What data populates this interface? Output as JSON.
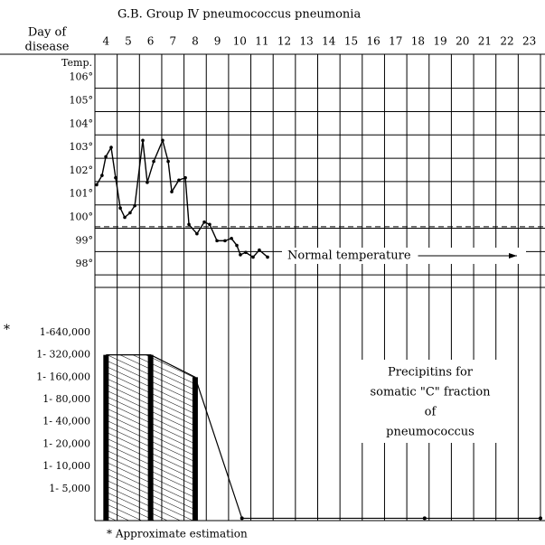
{
  "title": "G.B.   Group Ⅳ pneumococcus pneumonia",
  "x_label": [
    "Day of",
    "disease"
  ],
  "chart_data": [
    {
      "type": "line",
      "y_label": "Temp.",
      "xlim": [
        3.5,
        23.5
      ],
      "xticks": [
        4,
        5,
        6,
        7,
        8,
        9,
        10,
        11,
        12,
        13,
        14,
        15,
        16,
        17,
        18,
        19,
        20,
        21,
        22,
        23
      ],
      "ylim": [
        97,
        106.8
      ],
      "yticks": [
        {
          "value": 98,
          "label": "98°"
        },
        {
          "value": 99,
          "label": "99°"
        },
        {
          "value": 100,
          "label": "100°"
        },
        {
          "value": 101,
          "label": "101°"
        },
        {
          "value": 102,
          "label": "102°"
        },
        {
          "value": 103,
          "label": "103°"
        },
        {
          "value": 104,
          "label": "104°"
        },
        {
          "value": 105,
          "label": "105°"
        },
        {
          "value": 106,
          "label": "106°"
        }
      ],
      "grid": true,
      "reference": {
        "value": 99.6,
        "label": "Normal temperature"
      },
      "x": [
        3.58,
        3.82,
        3.99,
        4.23,
        4.43,
        4.64,
        4.84,
        5.08,
        5.29,
        5.65,
        5.85,
        6.14,
        6.54,
        6.79,
        6.95,
        7.27,
        7.56,
        7.72,
        8.08,
        8.41,
        8.65,
        8.98,
        9.34,
        9.63,
        9.87,
        10.03,
        10.27,
        10.6,
        10.88,
        11.25
      ],
      "values": [
        101.4,
        101.8,
        102.6,
        103.0,
        101.7,
        100.4,
        100.0,
        100.2,
        100.5,
        103.3,
        101.5,
        102.4,
        103.3,
        102.4,
        101.1,
        101.6,
        101.7,
        99.7,
        99.3,
        99.8,
        99.7,
        99.0,
        99.0,
        99.1,
        98.8,
        98.4,
        98.5,
        98.3,
        98.6,
        98.3
      ],
      "color": "#000000"
    },
    {
      "type": "titer",
      "log_scale": true,
      "log_base": 2,
      "xlim": [
        3.5,
        23.5
      ],
      "ylim": [
        1860,
        2600000
      ],
      "yticks": [
        {
          "value": 640000,
          "label": "1-640,000"
        },
        {
          "value": 320000,
          "label": "1- 320,000"
        },
        {
          "value": 160000,
          "label": "1- 160,000"
        },
        {
          "value": 80000,
          "label": "1- 80,000"
        },
        {
          "value": 40000,
          "label": "1- 40,000"
        },
        {
          "value": 20000,
          "label": "1- 20,000"
        },
        {
          "value": 10000,
          "label": "1- 10,000"
        },
        {
          "value": 5000,
          "label": "1- 5,000"
        }
      ],
      "tick_marker": "*",
      "annotation": [
        "Precipitins for",
        "somatic \"C\" fraction",
        "of",
        "pneumococcus"
      ],
      "footnote": "* Approximate estimation",
      "x": [
        4,
        6,
        8,
        10.1,
        18.3,
        23.5
      ],
      "values": [
        320000,
        320000,
        160000,
        2000,
        2000,
        2000
      ],
      "color": "#000000"
    }
  ]
}
